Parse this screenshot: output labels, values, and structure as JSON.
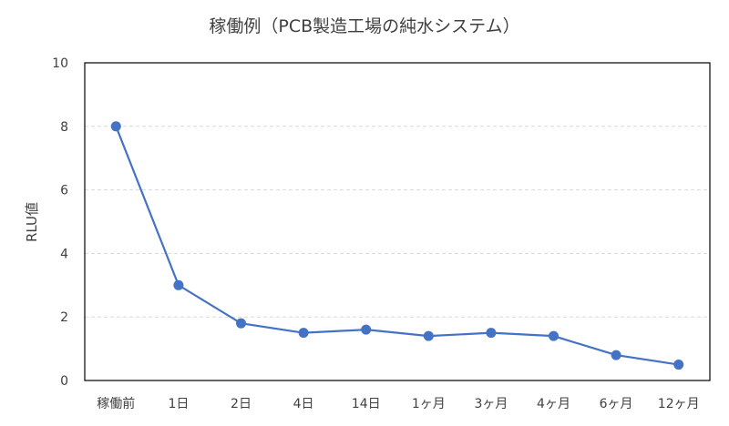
{
  "chart_data": {
    "type": "line",
    "title": "稼働例（PCB製造工場の純水システム）",
    "xlabel": "",
    "ylabel": "RLU値",
    "categories": [
      "稼働前",
      "1日",
      "2日",
      "4日",
      "14日",
      "1ヶ月",
      "3ヶ月",
      "4ヶ月",
      "6ヶ月",
      "12ヶ月"
    ],
    "series": [
      {
        "values": [
          8,
          3,
          1.8,
          1.5,
          1.6,
          1.4,
          1.5,
          1.4,
          0.8,
          0.5
        ]
      }
    ],
    "ylim": [
      0,
      10
    ],
    "yticks": [
      "0",
      "2",
      "4",
      "6",
      "8",
      "10"
    ],
    "grid": "horizontal-dashed",
    "legend": "none",
    "colors": {
      "line": "#4472C4",
      "marker": "#4472C4",
      "grid": "#D9D9D9",
      "frame": "#000000",
      "text": "#404040"
    }
  }
}
